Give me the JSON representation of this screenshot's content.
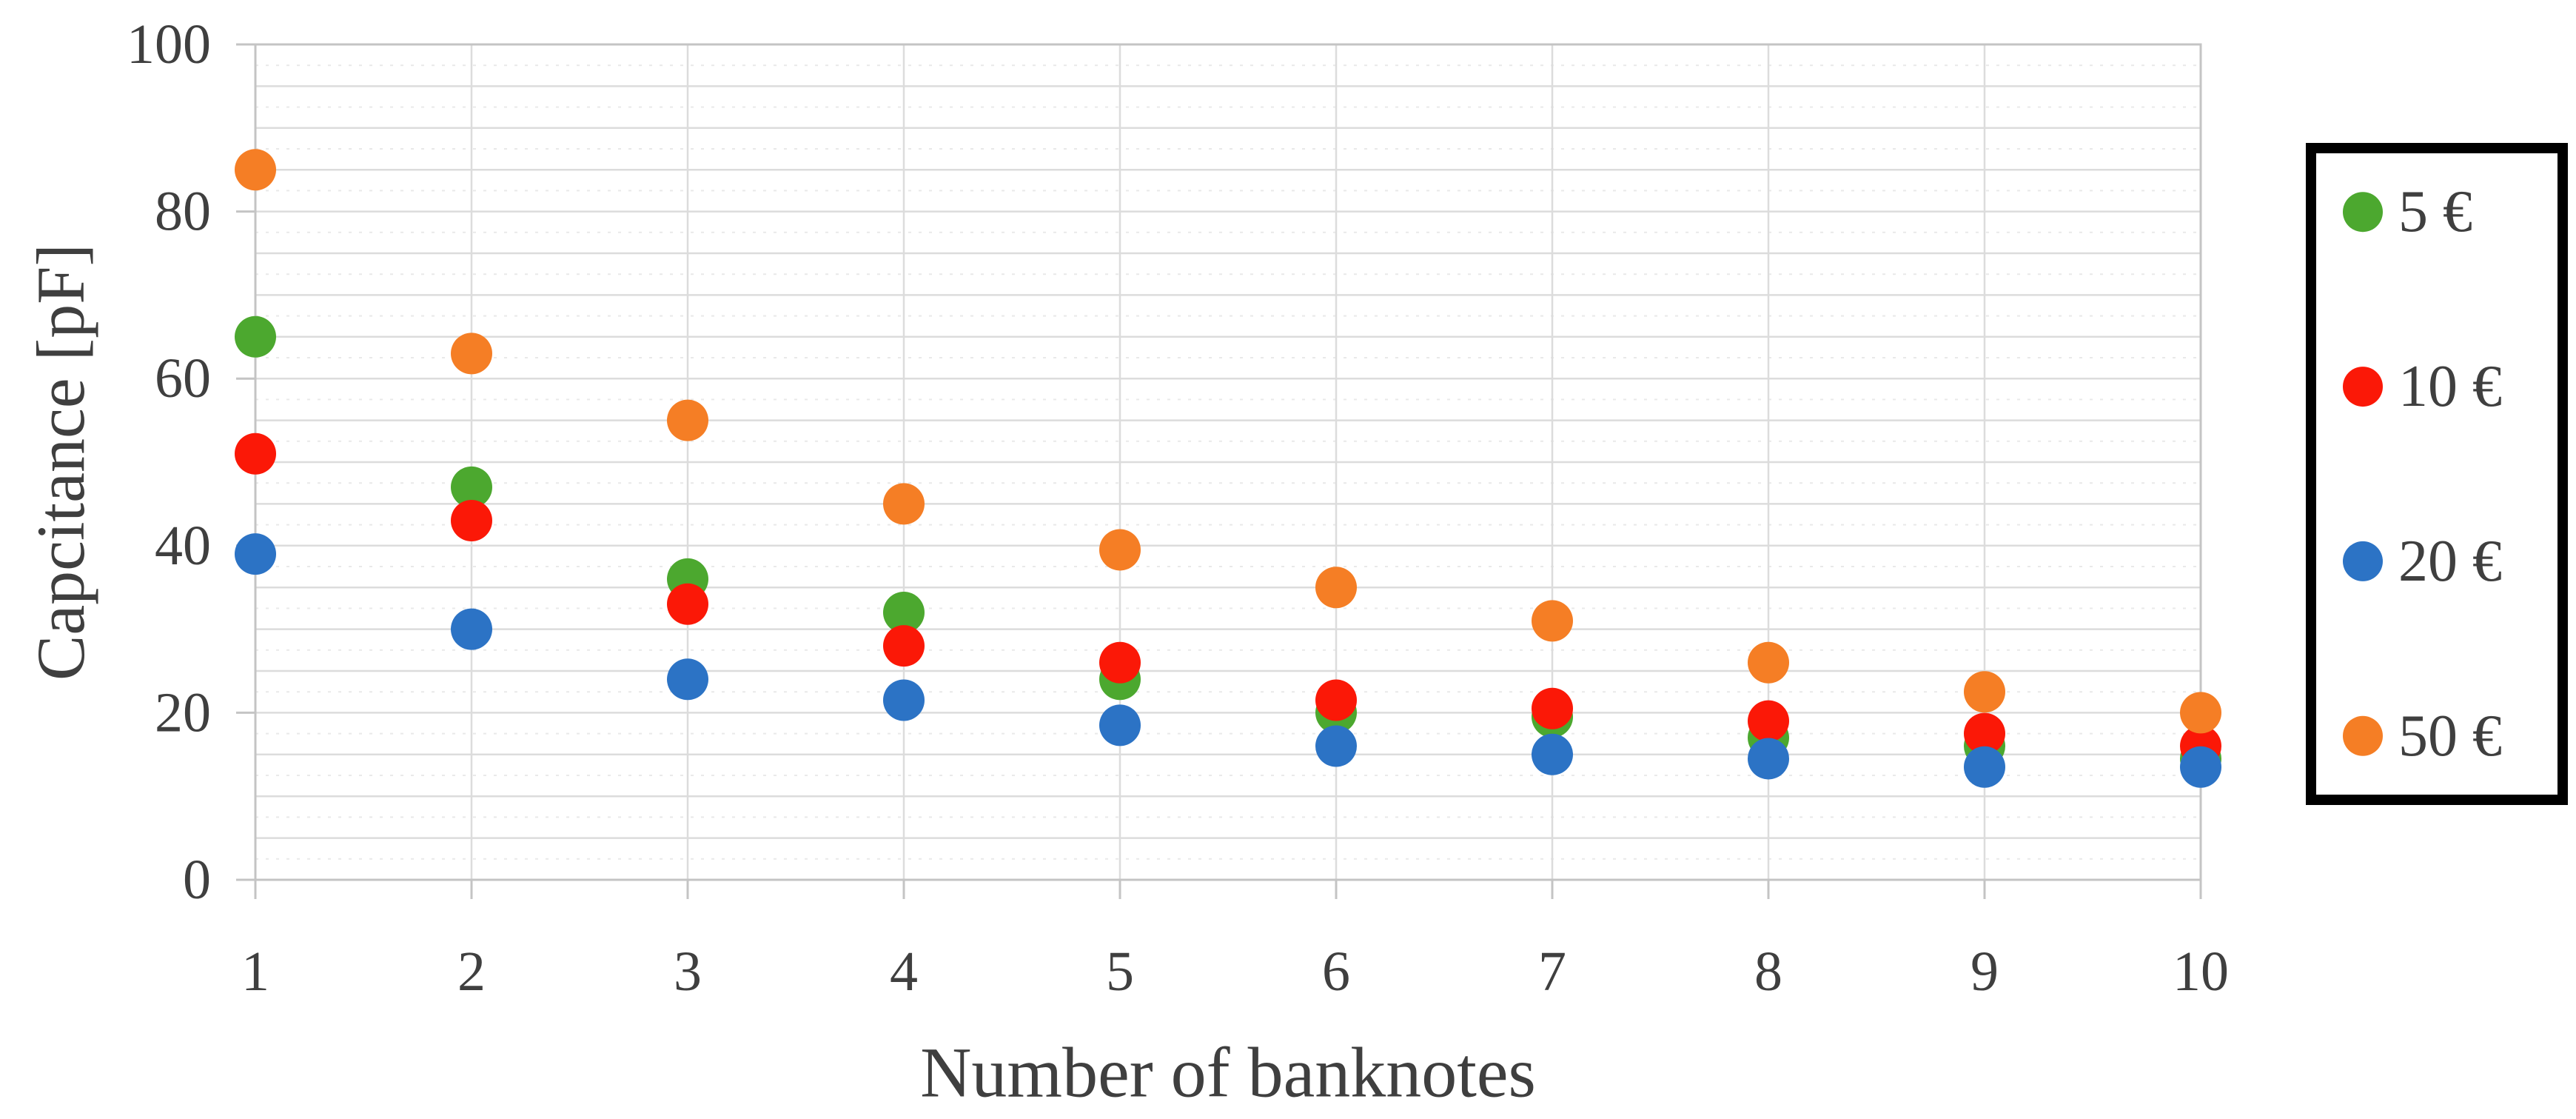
{
  "chart_data": {
    "type": "scatter",
    "title": "",
    "xlabel": "Number of banknotes",
    "ylabel": "Capcitance [pF]",
    "x": [
      1,
      2,
      3,
      4,
      5,
      6,
      7,
      8,
      9,
      10
    ],
    "xlim": [
      1,
      10
    ],
    "ylim": [
      0,
      100
    ],
    "x_ticks": [
      1,
      2,
      3,
      4,
      5,
      6,
      7,
      8,
      9,
      10
    ],
    "y_ticks": [
      0,
      20,
      40,
      60,
      80,
      100
    ],
    "grid": {
      "horizontal_major_step": 5,
      "horizontal_minor_step": 2.5,
      "vertical_lines_at_each_x": true,
      "major_style": "solid",
      "minor_style": "dotted"
    },
    "marker": {
      "shape": "circle"
    },
    "legend_position": "right",
    "series": [
      {
        "name": "5 €",
        "color": "#4CA82F",
        "values": [
          65,
          47,
          36,
          32,
          24,
          20,
          19.5,
          17,
          16,
          14.5
        ]
      },
      {
        "name": "10 €",
        "color": "#FB1807",
        "values": [
          51,
          43,
          33,
          28,
          26,
          21.5,
          20.5,
          19,
          17.5,
          16
        ]
      },
      {
        "name": "20 €",
        "color": "#2C73C5",
        "values": [
          39,
          30,
          24,
          21.5,
          18.5,
          16,
          15,
          14.5,
          13.5,
          13.5
        ]
      },
      {
        "name": "50 €",
        "color": "#F57E25",
        "values": [
          85,
          63,
          55,
          45,
          39.5,
          35,
          31,
          26,
          22.5,
          20
        ]
      }
    ]
  },
  "style": {
    "text_color": "#3f3f3f",
    "gridline_color": "#dcdcdc",
    "minor_gridline_color": "#e9e9e9",
    "border_color": "#c4c4c4",
    "legend_border_color": "#000000",
    "background_color": "#ffffff"
  }
}
